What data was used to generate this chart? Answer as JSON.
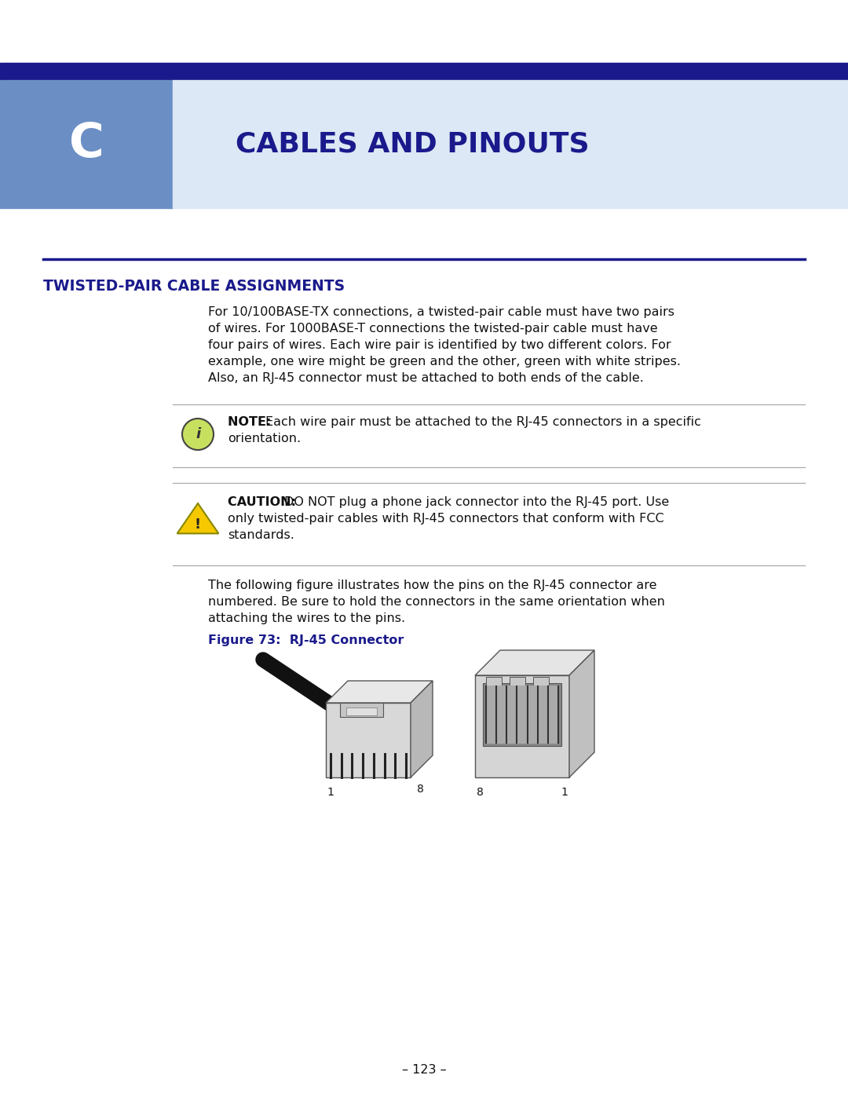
{
  "bg_color": "#ffffff",
  "header_bar_color": "#1a1a8c",
  "header_left_color": "#6b8fc4",
  "header_right_color": "#dce8f5",
  "chapter_letter": "C",
  "chapter_title": "CABLES AND PINOUTS",
  "section_title": "TWISTED-PAIR CABLE ASSIGNMENTS",
  "section_title_color": "#1a1a8c",
  "divider_color": "#1a1a8c",
  "body_text_color": "#111111",
  "body_text": "For 10/100BASE-TX connections, a twisted-pair cable must have two pairs\nof wires. For 1000BASE-T connections the twisted-pair cable must have\nfour pairs of wires. Each wire pair is identified by two different colors. For\nexample, one wire might be green and the other, green with white stripes.\nAlso, an RJ-45 connector must be attached to both ends of the cable.",
  "note_label": "NOTE:",
  "note_text": "Each wire pair must be attached to the RJ-45 connectors in a specific\norientation.",
  "caution_label": "CAUTION:",
  "caution_text": "DO NOT plug a phone jack connector into the RJ-45 port. Use\nonly twisted-pair cables with RJ-45 connectors that conform with FCC\nstandards.",
  "figure_label": "Figure 73:  RJ-45 Connector",
  "figure_label_color": "#1a1a8c",
  "body_text2": "The following figure illustrates how the pins on the RJ-45 connector are\nnumbered. Be sure to hold the connectors in the same orientation when\nattaching the wires to the pins.",
  "page_number": "– 123 –",
  "font_size_body": 11.5,
  "font_size_chapter": 44,
  "font_size_title": 26,
  "font_size_section": 13.5
}
